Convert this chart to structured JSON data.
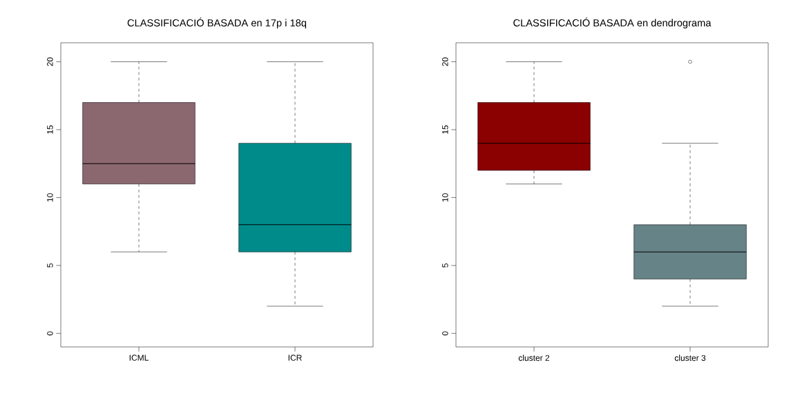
{
  "chart_data": [
    {
      "type": "box",
      "title": "CLASSIFICACIÓ BASADA en 17p i 18q",
      "categories": [
        "ICML",
        "ICR"
      ],
      "colors": [
        "#8b6870",
        "#008b8b"
      ],
      "boxes": [
        {
          "low": 6,
          "q1": 11,
          "median": 12.5,
          "q3": 17,
          "high": 20
        },
        {
          "low": 2,
          "q1": 6,
          "median": 8,
          "q3": 14,
          "high": 20
        }
      ],
      "ylim": [
        -1,
        21.4
      ],
      "yticks": [
        0,
        5,
        10,
        15,
        20
      ]
    },
    {
      "type": "box",
      "title": "CLASSIFICACIÓ BASADA en dendrograma",
      "categories": [
        "cluster 2",
        "cluster 3"
      ],
      "colors": [
        "#8b0000",
        "#668387"
      ],
      "boxes": [
        {
          "low": 11,
          "q1": 12,
          "median": 14,
          "q3": 17,
          "high": 20
        },
        {
          "low": 2,
          "q1": 4,
          "median": 6,
          "q3": 8,
          "high": 14,
          "outliers": [
            20
          ]
        }
      ],
      "ylim": [
        -1,
        21.4
      ],
      "yticks": [
        0,
        5,
        10,
        15,
        20
      ]
    }
  ]
}
